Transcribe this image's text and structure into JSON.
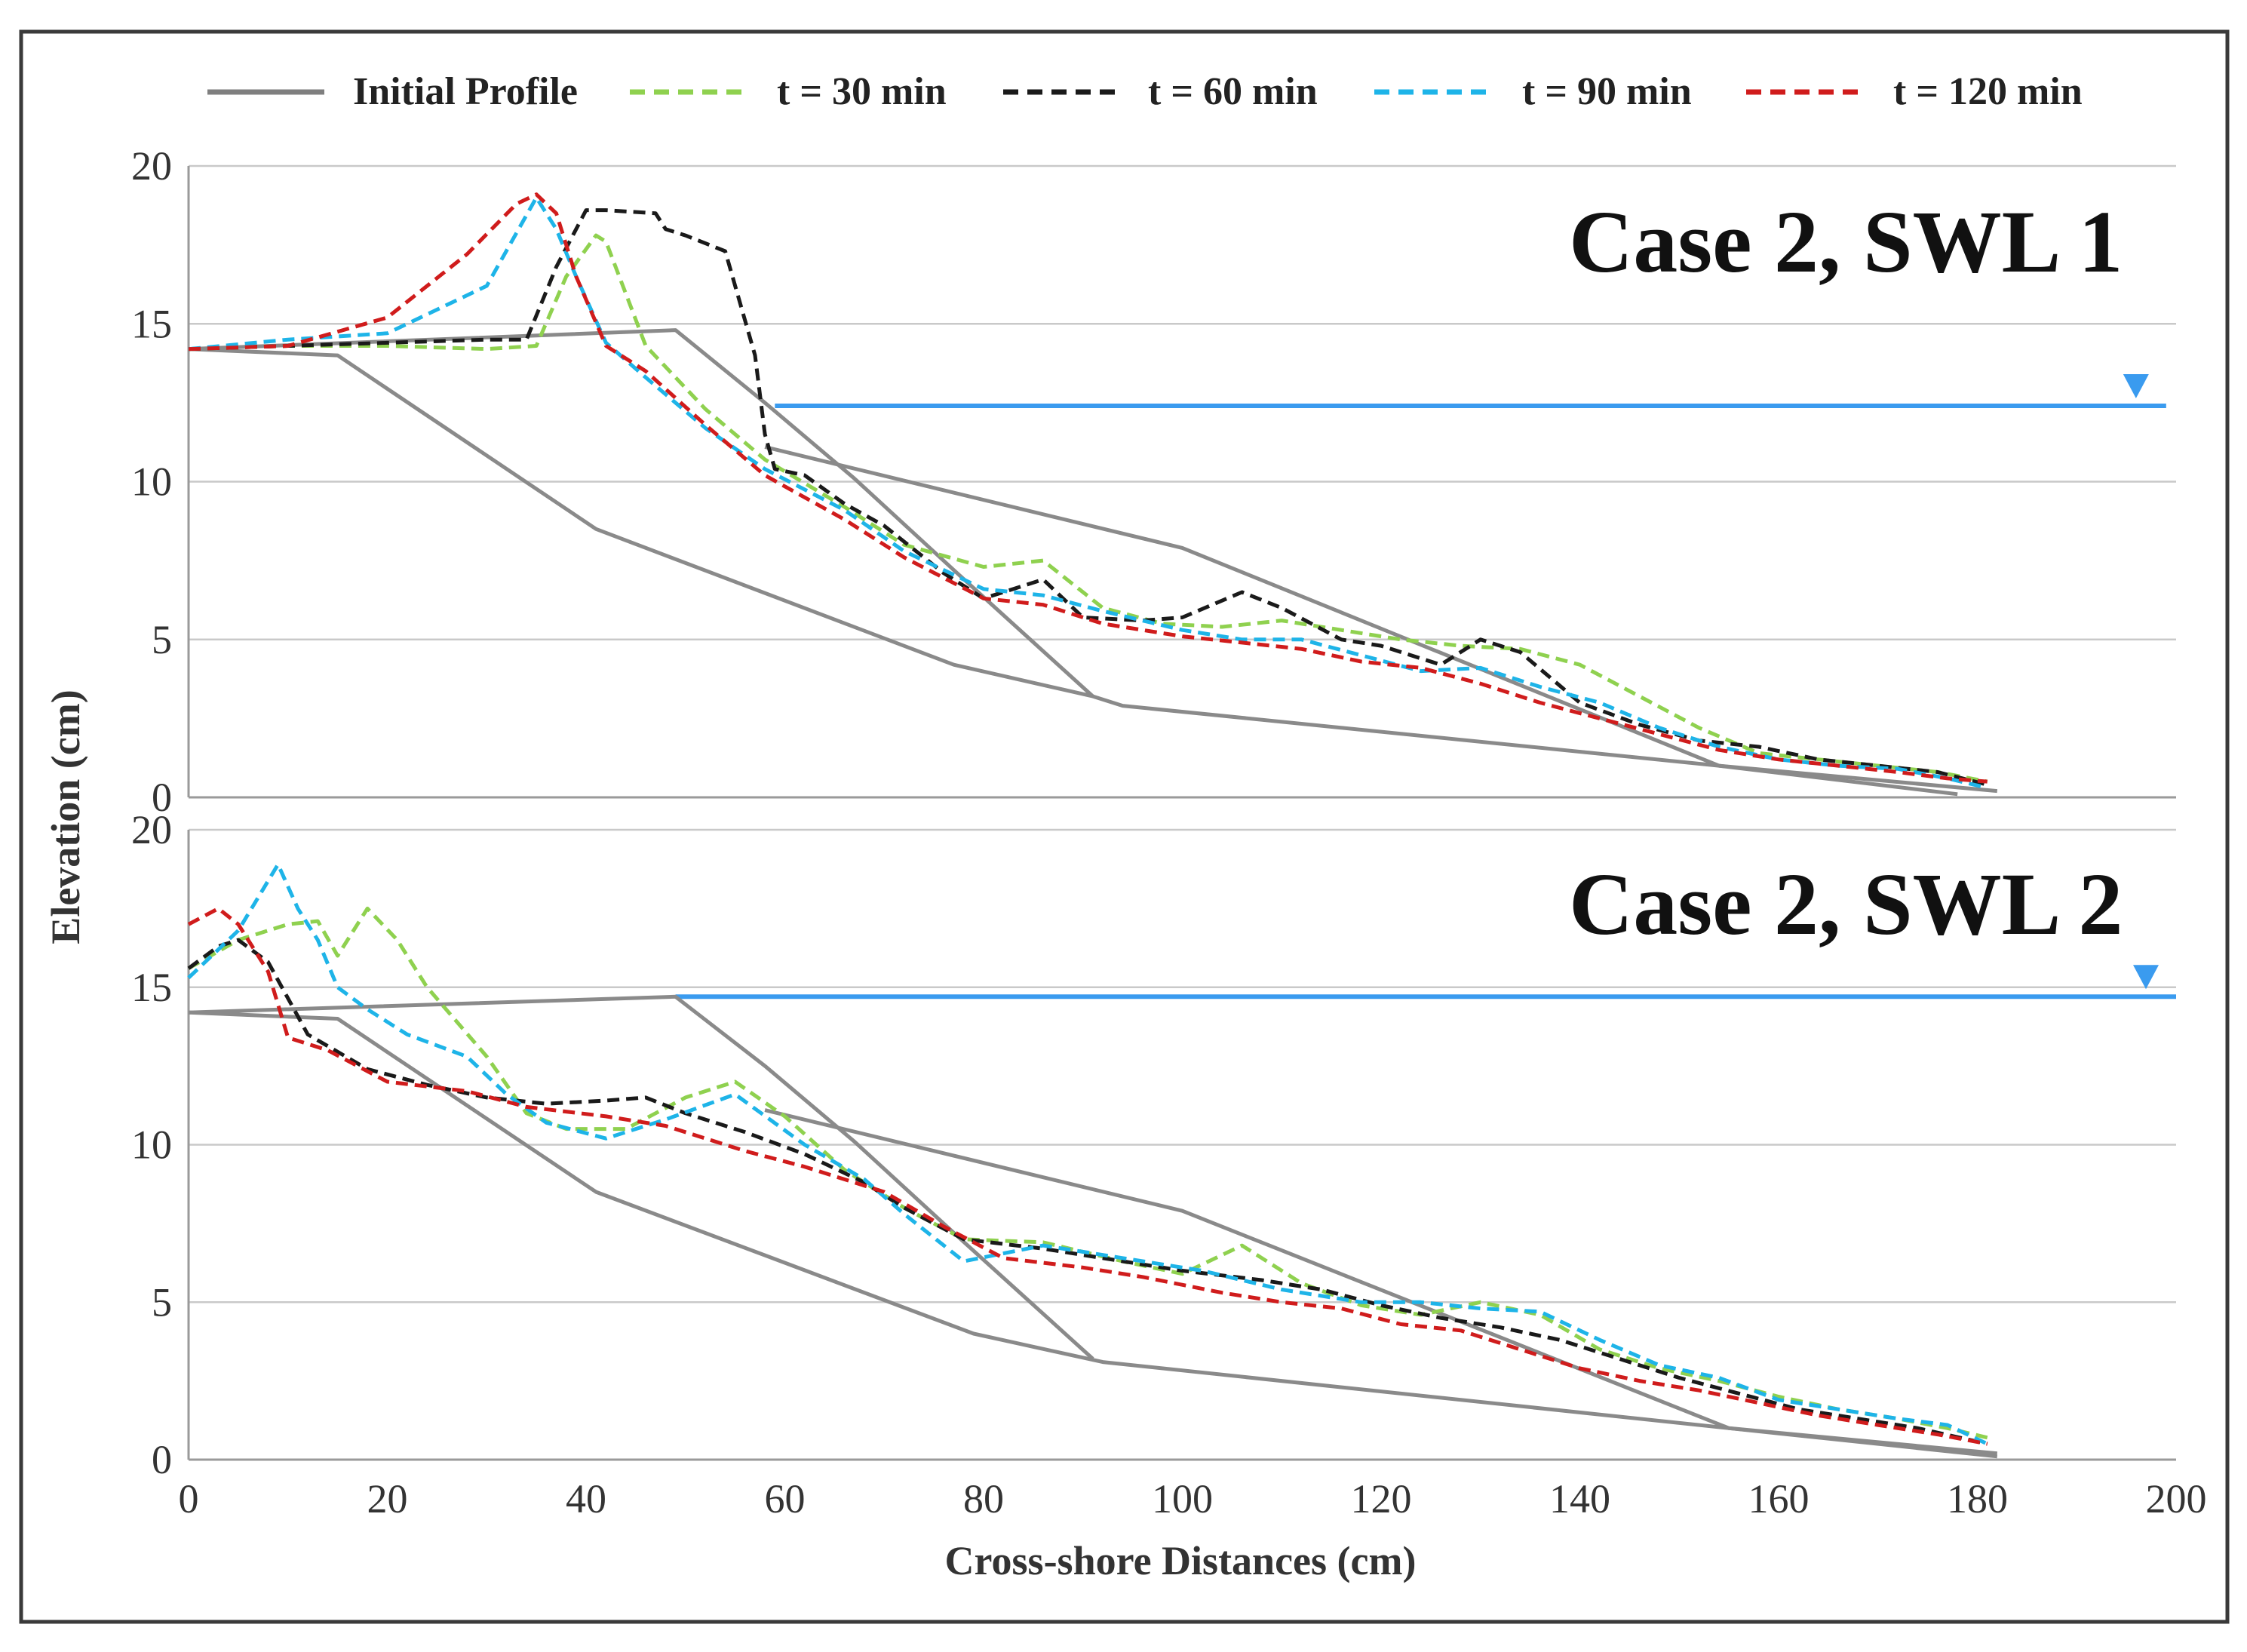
{
  "legend": [
    {
      "name": "Initial Profile",
      "color": "#7f7f7f",
      "dash": "solid"
    },
    {
      "name": "t = 30 min",
      "color": "#8fd14f",
      "dash": "dashed"
    },
    {
      "name": "t = 60 min",
      "color": "#1a1a1a",
      "dash": "dashed"
    },
    {
      "name": "t = 90 min",
      "color": "#1eb4e8",
      "dash": "dashed"
    },
    {
      "name": "t = 120 min",
      "color": "#d01c1c",
      "dash": "dashed"
    }
  ],
  "chart_data": [
    {
      "type": "line",
      "title": "Case 2, SWL 1",
      "xlabel": "Cross-shore Distances (cm)",
      "ylabel": "Elevation (cm)",
      "xlim": [
        0,
        200
      ],
      "ylim": [
        0,
        20
      ],
      "x_ticks": [
        "0",
        "20",
        "40",
        "60",
        "80",
        "100",
        "120",
        "140",
        "160",
        "180",
        "200"
      ],
      "y_ticks": [
        "0",
        "5",
        "10",
        "15",
        "20"
      ],
      "swl": {
        "elevation": 12.4,
        "x_start": 59,
        "x_end": 199,
        "color": "#3a9bef"
      },
      "initial_profile_lines": [
        {
          "x": [
            0,
            15,
            41,
            77,
            91,
            94,
            154,
            178
          ],
          "y": [
            14.2,
            14.0,
            8.5,
            4.2,
            3.2,
            2.9,
            1.0,
            0.1
          ]
        },
        {
          "x": [
            0,
            49,
            58,
            67,
            77,
            91
          ],
          "y": [
            14.2,
            14.8,
            12.5,
            10.1,
            7.2,
            3.2
          ]
        },
        {
          "x": [
            58,
            100,
            154,
            182
          ],
          "y": [
            11.1,
            7.9,
            1.0,
            0.2
          ]
        }
      ],
      "series": [
        {
          "name": "t = 30 min",
          "x": [
            0,
            10,
            20,
            30,
            35,
            38,
            41,
            42,
            46,
            52,
            58,
            66,
            72,
            80,
            86,
            92,
            98,
            104,
            110,
            116,
            122,
            128,
            134,
            140,
            146,
            152,
            158,
            164,
            170,
            176,
            181
          ],
          "y": [
            14.2,
            14.3,
            14.3,
            14.2,
            14.3,
            16.5,
            17.8,
            17.6,
            14.3,
            12.3,
            10.7,
            9.2,
            8.0,
            7.3,
            7.5,
            6.0,
            5.5,
            5.4,
            5.6,
            5.3,
            5.0,
            4.8,
            4.7,
            4.2,
            3.2,
            2.2,
            1.4,
            1.2,
            1.0,
            0.8,
            0.5
          ]
        },
        {
          "name": "t = 60 min",
          "x": [
            0,
            10,
            20,
            30,
            34,
            37,
            40,
            42,
            47,
            48,
            50,
            54,
            57,
            58,
            59,
            62,
            66,
            70,
            76,
            80,
            86,
            90,
            96,
            100,
            106,
            110,
            116,
            120,
            126,
            130,
            134,
            140,
            146,
            152,
            158,
            164,
            170,
            176,
            181
          ],
          "y": [
            14.2,
            14.3,
            14.4,
            14.5,
            14.5,
            16.8,
            18.6,
            18.6,
            18.5,
            18.0,
            17.8,
            17.3,
            14.0,
            11.5,
            10.4,
            10.2,
            9.3,
            8.6,
            7.1,
            6.3,
            6.9,
            5.7,
            5.6,
            5.7,
            6.5,
            6.0,
            5.0,
            4.8,
            4.2,
            5.0,
            4.6,
            3.0,
            2.3,
            1.8,
            1.6,
            1.2,
            1.0,
            0.8,
            0.4
          ]
        },
        {
          "name": "t = 90 min",
          "x": [
            0,
            10,
            20,
            30,
            35,
            37,
            39,
            42,
            46,
            52,
            58,
            66,
            72,
            80,
            86,
            92,
            100,
            106,
            112,
            118,
            124,
            130,
            136,
            142,
            148,
            154,
            160,
            166,
            172,
            177,
            181
          ],
          "y": [
            14.2,
            14.5,
            14.7,
            16.2,
            19.0,
            18.0,
            16.5,
            14.4,
            13.3,
            11.7,
            10.4,
            9.1,
            7.8,
            6.6,
            6.4,
            5.9,
            5.3,
            5.0,
            5.0,
            4.5,
            4.0,
            4.1,
            3.5,
            3.0,
            2.2,
            1.6,
            1.2,
            1.0,
            0.9,
            0.6,
            0.3
          ]
        },
        {
          "name": "t = 120 min",
          "x": [
            0,
            10,
            20,
            28,
            33,
            35,
            37,
            39,
            42,
            46,
            52,
            58,
            66,
            72,
            80,
            86,
            92,
            100,
            106,
            112,
            118,
            124,
            130,
            136,
            142,
            148,
            154,
            160,
            166,
            172,
            177,
            181
          ],
          "y": [
            14.2,
            14.3,
            15.2,
            17.2,
            18.8,
            19.1,
            18.5,
            16.5,
            14.3,
            13.5,
            11.8,
            10.2,
            8.8,
            7.6,
            6.3,
            6.1,
            5.5,
            5.1,
            4.9,
            4.7,
            4.3,
            4.1,
            3.6,
            3.0,
            2.5,
            2.0,
            1.5,
            1.2,
            1.0,
            0.8,
            0.6,
            0.5
          ]
        }
      ]
    },
    {
      "type": "line",
      "title": "Case 2, SWL 2",
      "xlabel": "Cross-shore Distances (cm)",
      "ylabel": "Elevation (cm)",
      "xlim": [
        0,
        200
      ],
      "ylim": [
        0,
        20
      ],
      "x_ticks": [
        "0",
        "20",
        "40",
        "60",
        "80",
        "100",
        "120",
        "140",
        "160",
        "180",
        "200"
      ],
      "y_ticks": [
        "0",
        "5",
        "10",
        "15",
        "20"
      ],
      "swl": {
        "elevation": 14.7,
        "x_start": 49,
        "x_end": 200,
        "color": "#3a9bef"
      },
      "initial_profile_lines": [
        {
          "x": [
            0,
            15,
            41,
            79,
            92,
            155,
            182
          ],
          "y": [
            14.2,
            14.0,
            8.5,
            4.0,
            3.1,
            1.0,
            0.1
          ]
        },
        {
          "x": [
            0,
            49,
            58,
            67,
            77,
            91
          ],
          "y": [
            14.2,
            14.7,
            12.5,
            10.1,
            7.2,
            3.2
          ]
        },
        {
          "x": [
            58,
            100,
            155,
            182
          ],
          "y": [
            11.1,
            7.9,
            1.0,
            0.2
          ]
        }
      ],
      "series": [
        {
          "name": "t = 30 min",
          "x": [
            0,
            5,
            10,
            13,
            15,
            18,
            21,
            24,
            30,
            34,
            38,
            44,
            50,
            55,
            60,
            66,
            72,
            78,
            86,
            94,
            100,
            106,
            112,
            118,
            124,
            130,
            136,
            142,
            148,
            154,
            160,
            166,
            172,
            177,
            181
          ],
          "y": [
            15.6,
            16.5,
            17.0,
            17.1,
            16.0,
            17.5,
            16.5,
            15.0,
            12.8,
            11.0,
            10.5,
            10.5,
            11.5,
            12.0,
            10.9,
            9.2,
            8.0,
            7.0,
            6.9,
            6.3,
            5.9,
            6.8,
            5.6,
            4.9,
            4.6,
            5.0,
            4.6,
            3.5,
            2.9,
            2.5,
            2.0,
            1.6,
            1.3,
            1.0,
            0.7
          ]
        },
        {
          "name": "t = 60 min",
          "x": [
            0,
            3,
            5,
            8,
            12,
            18,
            24,
            30,
            36,
            42,
            46,
            50,
            56,
            62,
            68,
            72,
            78,
            86,
            94,
            100,
            108,
            114,
            120,
            126,
            132,
            138,
            144,
            150,
            156,
            162,
            168,
            174,
            181
          ],
          "y": [
            15.6,
            16.3,
            16.5,
            15.8,
            13.5,
            12.4,
            11.9,
            11.5,
            11.3,
            11.4,
            11.5,
            11.0,
            10.4,
            9.7,
            8.8,
            8.0,
            7.0,
            6.7,
            6.3,
            6.0,
            5.7,
            5.4,
            4.9,
            4.5,
            4.2,
            3.8,
            3.2,
            2.6,
            2.1,
            1.6,
            1.3,
            1.0,
            0.5
          ]
        },
        {
          "name": "t = 90 min",
          "x": [
            0,
            5,
            9,
            11,
            13,
            15,
            18,
            22,
            28,
            32,
            36,
            42,
            48,
            55,
            62,
            68,
            72,
            78,
            86,
            94,
            102,
            110,
            118,
            124,
            130,
            136,
            142,
            148,
            154,
            160,
            166,
            172,
            177,
            181
          ],
          "y": [
            15.3,
            16.8,
            18.9,
            17.5,
            16.5,
            15.0,
            14.3,
            13.5,
            12.8,
            11.6,
            10.7,
            10.2,
            10.8,
            11.6,
            10.0,
            8.9,
            7.8,
            6.3,
            6.8,
            6.4,
            6.0,
            5.4,
            5.0,
            5.0,
            4.8,
            4.7,
            3.8,
            3.0,
            2.6,
            1.9,
            1.6,
            1.3,
            1.1,
            0.5
          ]
        },
        {
          "name": "t = 120 min",
          "x": [
            0,
            3,
            5,
            8,
            10,
            14,
            20,
            28,
            34,
            42,
            48,
            56,
            62,
            70,
            76,
            82,
            90,
            96,
            104,
            110,
            116,
            122,
            128,
            134,
            140,
            146,
            152,
            158,
            164,
            170,
            176,
            181
          ],
          "y": [
            17.0,
            17.5,
            17.0,
            15.5,
            13.4,
            13.0,
            12.0,
            11.7,
            11.2,
            10.9,
            10.6,
            9.8,
            9.3,
            8.5,
            7.4,
            6.4,
            6.1,
            5.8,
            5.3,
            5.0,
            4.8,
            4.3,
            4.1,
            3.5,
            2.9,
            2.5,
            2.2,
            1.8,
            1.4,
            1.1,
            0.8,
            0.5
          ]
        }
      ]
    }
  ]
}
